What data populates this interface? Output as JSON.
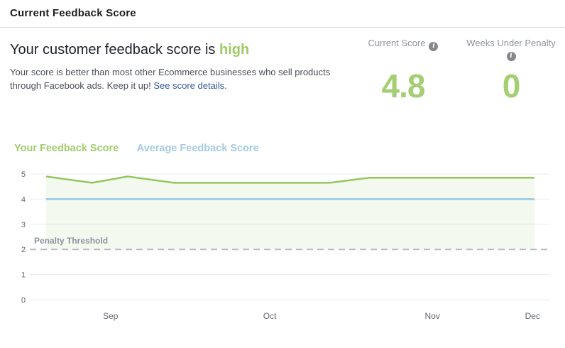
{
  "header": {
    "title": "Current Feedback Score"
  },
  "summary": {
    "title_prefix": "Your customer feedback score is",
    "title_status": "high",
    "description": "Your score is better than most other Ecommerce businesses who sell products through Facebook ads. Keep it up!",
    "link_text": "See score details."
  },
  "stats": [
    {
      "label": "Current Score",
      "value": "4.8",
      "info_icon": "i"
    },
    {
      "label": "Weeks Under Penalty",
      "value": "0",
      "info_icon": "i"
    }
  ],
  "colors": {
    "accent_green": "#9ecb64",
    "score_green": "#a3ce71",
    "link_blue": "#365899",
    "label_gray": "#90949c",
    "gridline": "#e9ebee",
    "tick_gray": "#616770",
    "threshold_line": "#b7babf",
    "threshold_label_gray": "#8d949e",
    "info_icon_bg": "#84878c",
    "header_border": "#dadde1"
  },
  "chart_data": {
    "type": "line",
    "title": "",
    "xlabel": "",
    "ylabel": "",
    "ylim": [
      0,
      5
    ],
    "y_ticks": [
      0,
      1,
      2,
      3,
      4,
      5
    ],
    "x_ticks": [
      {
        "label": "Sep",
        "x": 0.132
      },
      {
        "label": "Oct",
        "x": 0.458
      },
      {
        "label": "Nov",
        "x": 0.791
      },
      {
        "label": "Dec",
        "x": 0.996
      }
    ],
    "grid": true,
    "legend_position": "top-left",
    "series": [
      {
        "name": "Your Feedback Score",
        "color": "#93c75e",
        "legend_color": "#a1cd6e",
        "fill": "rgba(147,199,94,0.10)",
        "points": [
          [
            0,
            4.9
          ],
          [
            0.094,
            4.65
          ],
          [
            0.167,
            4.9
          ],
          [
            0.262,
            4.65
          ],
          [
            0.581,
            4.65
          ],
          [
            0.661,
            4.85
          ],
          [
            1,
            4.85
          ]
        ]
      },
      {
        "name": "Average Feedback Score",
        "color": "#92c9e3",
        "legend_color": "#a5cbe2",
        "points": [
          [
            0,
            4.0
          ],
          [
            1,
            4.0
          ]
        ]
      }
    ],
    "threshold": {
      "label": "Penalty Threshold",
      "value": 2
    }
  }
}
